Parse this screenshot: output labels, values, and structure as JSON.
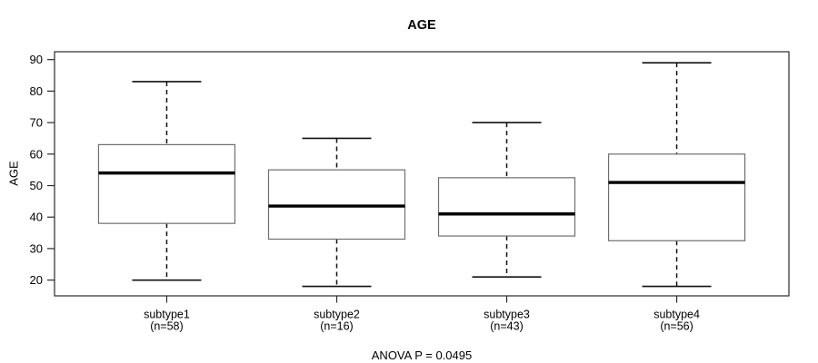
{
  "chart_data": {
    "type": "boxplot",
    "title": "AGE",
    "ylabel": "AGE",
    "xlabel": "",
    "annotation": "ANOVA P = 0.0495",
    "yticks": [
      20,
      30,
      40,
      50,
      60,
      70,
      80,
      90
    ],
    "ylim": [
      15,
      92.5
    ],
    "grid": false,
    "legend": null,
    "groups": [
      {
        "label": "subtype1",
        "n_label": "(n=58)",
        "n": 58,
        "min": 20,
        "q1": 38,
        "median": 54,
        "q3": 63,
        "max": 83
      },
      {
        "label": "subtype2",
        "n_label": "(n=16)",
        "n": 16,
        "min": 18,
        "q1": 33,
        "median": 43.5,
        "q3": 55,
        "max": 65
      },
      {
        "label": "subtype3",
        "n_label": "(n=43)",
        "n": 43,
        "min": 21,
        "q1": 34,
        "median": 41,
        "q3": 52.5,
        "max": 70
      },
      {
        "label": "subtype4",
        "n_label": "(n=56)",
        "n": 56,
        "min": 18,
        "q1": 32.5,
        "median": 51,
        "q3": 60,
        "max": 89
      }
    ],
    "colors": {
      "line": "#2a2a2a",
      "box_border": "#6e6e6e",
      "median": "#000000",
      "whisker": "#111111",
      "text": "#000000",
      "background": "#ffffff"
    }
  }
}
